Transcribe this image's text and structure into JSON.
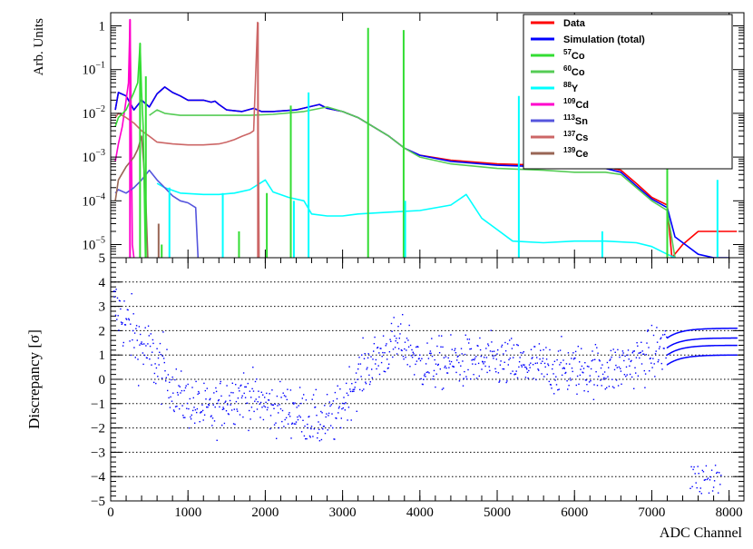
{
  "chart_data": [
    {
      "type": "line",
      "panel": "top",
      "ylabel": "Arb. Units",
      "yscale": "log",
      "ylim": [
        5e-06,
        2
      ],
      "xlim": [
        0,
        8192
      ],
      "y_ticks": [
        {
          "v": 1e-05,
          "m": "10",
          "e": "−5"
        },
        {
          "v": 0.0001,
          "m": "10",
          "e": "−4"
        },
        {
          "v": 0.001,
          "m": "10",
          "e": "−3"
        },
        {
          "v": 0.01,
          "m": "10",
          "e": "−2"
        },
        {
          "v": 0.1,
          "m": "10",
          "e": "−1"
        },
        {
          "v": 1,
          "m": "1",
          "e": ""
        }
      ],
      "legend_position": "top-right",
      "legend": [
        {
          "sup": "",
          "name": "Data",
          "color": "#ff0000"
        },
        {
          "sup": "",
          "name": "Simulation (total)",
          "color": "#0000ff"
        },
        {
          "sup": "57",
          "name": "Co",
          "color": "#33dd33"
        },
        {
          "sup": "60",
          "name": "Co",
          "color": "#55cc55"
        },
        {
          "sup": "88",
          "name": "Y",
          "color": "#00ffff"
        },
        {
          "sup": "109",
          "name": "Cd",
          "color": "#ff00cc"
        },
        {
          "sup": "113",
          "name": "Sn",
          "color": "#5555dd"
        },
        {
          "sup": "137",
          "name": "Cs",
          "color": "#cc6666"
        },
        {
          "sup": "139",
          "name": "Ce",
          "color": "#996655"
        }
      ],
      "series": [
        {
          "key": "data",
          "color": "#ff0000",
          "width": 1.6,
          "x": [
            60,
            100,
            200,
            300,
            400,
            500,
            600,
            700,
            800,
            900,
            1000,
            1100,
            1200,
            1300,
            1350,
            1400,
            1500,
            1700,
            1850,
            1900,
            1950,
            2100,
            2400,
            2700,
            2800,
            3000,
            3200,
            3600,
            3800,
            4000,
            4400,
            5000,
            5600,
            6000,
            6400,
            6600,
            6800,
            7000,
            7200,
            7260,
            7400,
            7600,
            7800,
            8000,
            8100
          ],
          "y": [
            0.012,
            0.03,
            0.025,
            0.012,
            0.02,
            0.014,
            0.028,
            0.04,
            0.03,
            0.025,
            0.02,
            0.02,
            0.02,
            0.018,
            0.019,
            0.016,
            0.012,
            0.011,
            0.013,
            0.012,
            0.011,
            0.011,
            0.012,
            0.016,
            0.013,
            0.011,
            0.008,
            0.003,
            0.0016,
            0.0011,
            0.00085,
            0.0007,
            0.00065,
            0.0006,
            0.0006,
            0.0005,
            0.00025,
            0.00012,
            8e-05,
            5e-06,
            1e-05,
            2e-05,
            2e-05,
            2e-05,
            2e-05
          ]
        },
        {
          "key": "sim",
          "color": "#0000ff",
          "width": 1.6,
          "x": [
            60,
            100,
            200,
            300,
            400,
            500,
            600,
            700,
            800,
            900,
            1000,
            1100,
            1200,
            1300,
            1350,
            1400,
            1500,
            1700,
            1850,
            1900,
            1950,
            2100,
            2400,
            2700,
            2800,
            3000,
            3200,
            3600,
            3800,
            4000,
            4400,
            5000,
            5600,
            6000,
            6400,
            6600,
            6800,
            7000,
            7200,
            7300,
            7600,
            7800,
            8000
          ],
          "y": [
            0.012,
            0.03,
            0.025,
            0.012,
            0.02,
            0.014,
            0.028,
            0.04,
            0.03,
            0.025,
            0.02,
            0.02,
            0.02,
            0.018,
            0.019,
            0.016,
            0.012,
            0.011,
            0.013,
            0.012,
            0.011,
            0.011,
            0.012,
            0.016,
            0.013,
            0.011,
            0.008,
            0.003,
            0.0016,
            0.0011,
            0.0008,
            0.00065,
            0.0006,
            0.00055,
            0.00055,
            0.00045,
            0.00022,
            0.00011,
            7e-05,
            1.5e-05,
            6e-06,
            5e-06,
            5e-06
          ]
        },
        {
          "key": "co60",
          "color": "#55cc55",
          "width": 1.6,
          "x": [
            500,
            600,
            700,
            900,
            1200,
            1500,
            1800,
            2100,
            2500,
            2800,
            3000,
            3200,
            3600,
            3800,
            4000,
            4400,
            5000,
            5600,
            6000,
            6400,
            6600,
            6800,
            7000,
            7200,
            7300
          ],
          "y": [
            0.009,
            0.012,
            0.01,
            0.009,
            0.009,
            0.009,
            0.009,
            0.0095,
            0.011,
            0.014,
            0.011,
            0.008,
            0.003,
            0.0016,
            0.001,
            0.0007,
            0.00055,
            0.0005,
            0.00045,
            0.00045,
            0.0004,
            0.0002,
            0.0001,
            6e-05,
            5e-06
          ]
        },
        {
          "key": "y88",
          "color": "#00ffff",
          "width": 1.6,
          "x": [
            600,
            700,
            900,
            1200,
            1400,
            1600,
            1800,
            2000,
            2100,
            2300,
            2500,
            2600,
            2800,
            3000,
            3200,
            3600,
            4000,
            4400,
            4600,
            4800,
            5000,
            5200,
            5600,
            6000,
            6400,
            6800,
            7000,
            7200,
            7300
          ],
          "y": [
            0.00025,
            0.0002,
            0.00015,
            0.00014,
            0.00014,
            0.00015,
            0.00018,
            0.0003,
            0.00016,
            0.00012,
            0.0001,
            5e-05,
            4.5e-05,
            4.5e-05,
            5e-05,
            5.5e-05,
            6e-05,
            8e-05,
            0.00014,
            4e-05,
            2.2e-05,
            1.2e-05,
            1.1e-05,
            1.2e-05,
            1.2e-05,
            1.1e-05,
            9e-06,
            6e-06,
            5e-06
          ]
        },
        {
          "key": "cd109",
          "color": "#ff00cc",
          "width": 1.6,
          "x": [
            60,
            100,
            150,
            200,
            230,
            250,
            260,
            280,
            300
          ],
          "y": [
            0.0008,
            0.002,
            0.005,
            0.02,
            0.05,
            1.4,
            0.05,
            1e-05,
            5e-06
          ]
        },
        {
          "key": "sn113",
          "color": "#5555dd",
          "width": 1.6,
          "x": [
            60,
            100,
            200,
            300,
            400,
            500,
            600,
            700,
            800,
            900,
            1000,
            1100,
            1130
          ],
          "y": [
            0.00015,
            0.00018,
            0.00015,
            0.0002,
            0.0003,
            0.0005,
            0.0003,
            0.0002,
            0.00013,
            0.0001,
            9e-05,
            7e-05,
            5e-06
          ]
        },
        {
          "key": "cs137",
          "color": "#cc6666",
          "width": 1.6,
          "x": [
            60,
            100,
            200,
            300,
            400,
            500,
            600,
            800,
            1000,
            1200,
            1400,
            1500,
            1600,
            1700,
            1800,
            1850,
            1900,
            1920
          ],
          "y": [
            0.008,
            0.01,
            0.008,
            0.006,
            0.004,
            0.003,
            0.0022,
            0.002,
            0.0019,
            0.0019,
            0.002,
            0.0022,
            0.0025,
            0.003,
            0.0035,
            0.004,
            1.2,
            5e-06
          ]
        },
        {
          "key": "ce139",
          "color": "#996655",
          "width": 1.6,
          "x": [
            60,
            100,
            200,
            300,
            350,
            400,
            450,
            480
          ],
          "y": [
            0.0001,
            0.0003,
            0.0006,
            0.001,
            0.0015,
            0.003,
            0.0002,
            5e-06
          ]
        },
        {
          "key": "co57",
          "color": "#33dd33",
          "width": 1.6,
          "x": [
            60,
            100,
            200,
            300,
            350,
            380,
            400,
            420,
            450
          ],
          "y": [
            0.005,
            0.008,
            0.012,
            0.03,
            0.05,
            0.4,
            0.03,
            0.005,
            5e-06
          ]
        }
      ],
      "peaks": [
        {
          "x": 250,
          "y": 1.4,
          "color": "#ff00cc"
        },
        {
          "x": 380,
          "y": 0.4,
          "color": "#33dd33"
        },
        {
          "x": 455,
          "y": 0.07,
          "color": "#33dd33"
        },
        {
          "x": 1905,
          "y": 1.2,
          "color": "#cc6666"
        },
        {
          "x": 2330,
          "y": 0.015,
          "color": "#33dd33"
        },
        {
          "x": 2560,
          "y": 0.03,
          "color": "#00ffff"
        },
        {
          "x": 3330,
          "y": 0.9,
          "color": "#33dd33"
        },
        {
          "x": 3790,
          "y": 0.8,
          "color": "#33dd33"
        },
        {
          "x": 5280,
          "y": 0.025,
          "color": "#00ffff"
        },
        {
          "x": 7200,
          "y": 0.7,
          "color": "#33dd33"
        },
        {
          "x": 7850,
          "y": 0.0003,
          "color": "#00ffff"
        },
        {
          "x": 620,
          "y": 3e-05,
          "color": "#996655"
        },
        {
          "x": 1450,
          "y": 0.00015,
          "color": "#00ffff"
        },
        {
          "x": 2370,
          "y": 0.0001,
          "color": "#00ffff"
        },
        {
          "x": 3810,
          "y": 0.0001,
          "color": "#00ffff"
        },
        {
          "x": 6360,
          "y": 2e-05,
          "color": "#00ffff"
        },
        {
          "x": 760,
          "y": 0.0002,
          "color": "#00ffff"
        },
        {
          "x": 1660,
          "y": 2e-05,
          "color": "#33dd33"
        },
        {
          "x": 2020,
          "y": 0.00015,
          "color": "#33dd33"
        },
        {
          "x": 660,
          "y": 1e-05,
          "color": "#33dd33"
        }
      ]
    },
    {
      "type": "scatter",
      "panel": "bottom",
      "xlabel": "ADC Channel",
      "ylabel": "Discrepancy [σ]",
      "ylim": [
        -5,
        5
      ],
      "xlim": [
        0,
        8192
      ],
      "y_ticks": [
        -5,
        -4,
        -3,
        -2,
        -1,
        0,
        1,
        2,
        3,
        4,
        5
      ],
      "x_ticks": [
        0,
        1000,
        2000,
        3000,
        4000,
        5000,
        6000,
        7000,
        8000
      ],
      "grid": "horizontal dotted",
      "point_color": "#0000ff",
      "point_size": 1.4,
      "x_step": 8,
      "mean_profile": {
        "x": [
          0,
          100,
          300,
          500,
          700,
          900,
          1100,
          1300,
          1500,
          1700,
          1900,
          2100,
          2400,
          2700,
          2900,
          3100,
          3300,
          3500,
          3700,
          3850,
          4000,
          4500,
          5000,
          5500,
          6000,
          6500,
          7000,
          7200,
          8192
        ],
        "y": [
          3,
          2.8,
          1.8,
          1,
          0.3,
          -0.8,
          -1.1,
          -1.4,
          -0.8,
          -0.6,
          -0.9,
          -1.2,
          -1.3,
          -1.8,
          -1.6,
          -0.4,
          0.5,
          1.0,
          1.5,
          1.4,
          0.6,
          0.7,
          0.7,
          0.5,
          0.4,
          0.4,
          1.0,
          1.4,
          1.5
        ]
      },
      "spread": 0.75,
      "bands": {
        "x_from": 7200,
        "x_to": 8100,
        "levels": [
          1.0,
          1.4,
          1.7,
          2.1
        ],
        "start_offset": -0.4
      }
    }
  ]
}
